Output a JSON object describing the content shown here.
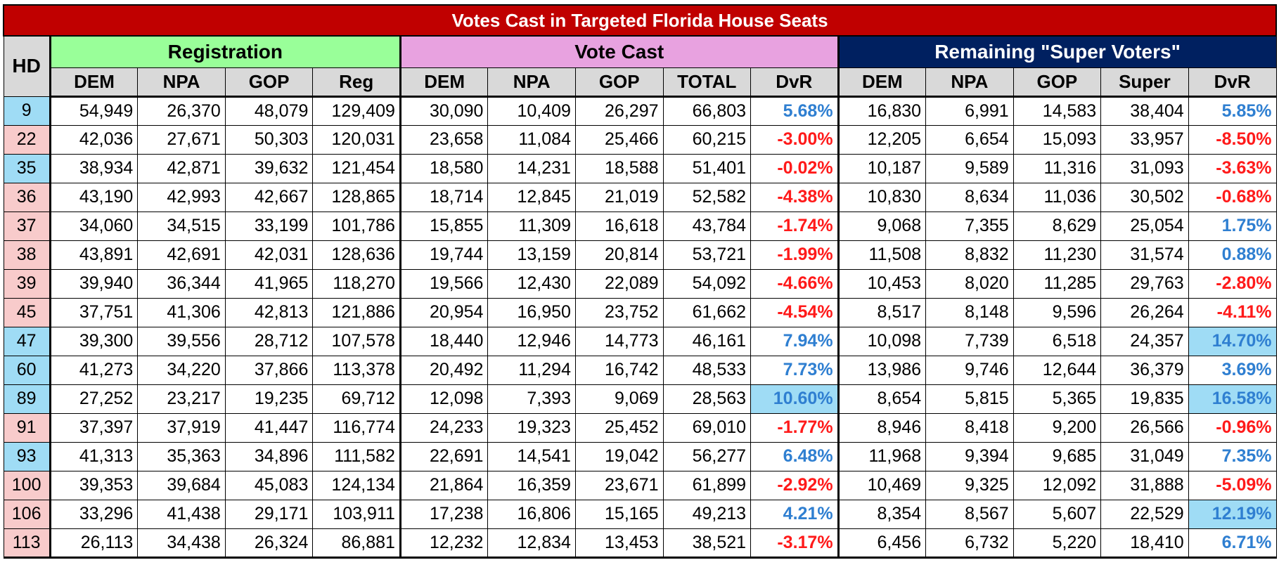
{
  "title": "Votes Cast in Targeted Florida House Seats",
  "groups": {
    "hd": "HD",
    "registration": "Registration",
    "vote_cast": "Vote Cast",
    "super_voters": "Remaining \"Super Voters\""
  },
  "subheaders": [
    "DEM",
    "NPA",
    "GOP",
    "Reg",
    "DEM",
    "NPA",
    "GOP",
    "TOTAL",
    "DvR",
    "DEM",
    "NPA",
    "GOP",
    "Super",
    "DvR"
  ],
  "colors": {
    "title_bg": "#c00000",
    "registration_bg": "#99ff99",
    "vote_cast_bg": "#e8a2e0",
    "super_bg": "#002060",
    "hd_blue": "#9fdcf5",
    "hd_red": "#f8cbcb",
    "positive_text": "#2f7fd1",
    "negative_text": "#ff1a1a"
  },
  "rows": [
    {
      "hd": "9",
      "hd_color": "blue",
      "cells": [
        "54,949",
        "26,370",
        "48,079",
        "129,409",
        "30,090",
        "10,409",
        "26,297",
        "66,803",
        "5.68%",
        "16,830",
        "6,991",
        "14,583",
        "38,404",
        "5.85%"
      ],
      "hl": []
    },
    {
      "hd": "22",
      "hd_color": "red",
      "cells": [
        "42,036",
        "27,671",
        "50,303",
        "120,031",
        "23,658",
        "11,084",
        "25,466",
        "60,215",
        "-3.00%",
        "12,205",
        "6,654",
        "15,093",
        "33,957",
        "-8.50%"
      ],
      "hl": []
    },
    {
      "hd": "35",
      "hd_color": "blue",
      "cells": [
        "38,934",
        "42,871",
        "39,632",
        "121,454",
        "18,580",
        "14,231",
        "18,588",
        "51,401",
        "-0.02%",
        "10,187",
        "9,589",
        "11,316",
        "31,093",
        "-3.63%"
      ],
      "hl": []
    },
    {
      "hd": "36",
      "hd_color": "red",
      "cells": [
        "43,190",
        "42,993",
        "42,667",
        "128,865",
        "18,714",
        "12,845",
        "21,019",
        "52,582",
        "-4.38%",
        "10,830",
        "8,634",
        "11,036",
        "30,502",
        "-0.68%"
      ],
      "hl": []
    },
    {
      "hd": "37",
      "hd_color": "red",
      "cells": [
        "34,060",
        "34,515",
        "33,199",
        "101,786",
        "15,855",
        "11,309",
        "16,618",
        "43,784",
        "-1.74%",
        "9,068",
        "7,355",
        "8,629",
        "25,054",
        "1.75%"
      ],
      "hl": []
    },
    {
      "hd": "38",
      "hd_color": "red",
      "cells": [
        "43,891",
        "42,691",
        "42,031",
        "128,636",
        "19,744",
        "13,159",
        "20,814",
        "53,721",
        "-1.99%",
        "11,508",
        "8,832",
        "11,230",
        "31,574",
        "0.88%"
      ],
      "hl": []
    },
    {
      "hd": "39",
      "hd_color": "red",
      "cells": [
        "39,940",
        "36,344",
        "41,965",
        "118,270",
        "19,566",
        "12,430",
        "22,089",
        "54,092",
        "-4.66%",
        "10,453",
        "8,020",
        "11,285",
        "29,763",
        "-2.80%"
      ],
      "hl": []
    },
    {
      "hd": "45",
      "hd_color": "red",
      "cells": [
        "37,751",
        "41,306",
        "42,813",
        "121,886",
        "20,954",
        "16,950",
        "23,752",
        "61,662",
        "-4.54%",
        "8,517",
        "8,148",
        "9,596",
        "26,264",
        "-4.11%"
      ],
      "hl": []
    },
    {
      "hd": "47",
      "hd_color": "blue",
      "cells": [
        "39,300",
        "39,556",
        "28,712",
        "107,578",
        "18,440",
        "12,946",
        "14,773",
        "46,161",
        "7.94%",
        "10,098",
        "7,739",
        "6,518",
        "24,357",
        "14.70%"
      ],
      "hl": [
        13
      ]
    },
    {
      "hd": "60",
      "hd_color": "blue",
      "cells": [
        "41,273",
        "34,220",
        "37,866",
        "113,378",
        "20,492",
        "11,294",
        "16,742",
        "48,533",
        "7.73%",
        "13,986",
        "9,746",
        "12,644",
        "36,379",
        "3.69%"
      ],
      "hl": []
    },
    {
      "hd": "89",
      "hd_color": "blue",
      "cells": [
        "27,252",
        "23,217",
        "19,235",
        "69,712",
        "12,098",
        "7,393",
        "9,069",
        "28,563",
        "10.60%",
        "8,654",
        "5,815",
        "5,365",
        "19,835",
        "16.58%"
      ],
      "hl": [
        8,
        13
      ]
    },
    {
      "hd": "91",
      "hd_color": "red",
      "cells": [
        "37,397",
        "37,919",
        "41,447",
        "116,774",
        "24,233",
        "19,323",
        "25,452",
        "69,010",
        "-1.77%",
        "8,946",
        "8,418",
        "9,200",
        "26,566",
        "-0.96%"
      ],
      "hl": []
    },
    {
      "hd": "93",
      "hd_color": "blue",
      "cells": [
        "41,313",
        "35,363",
        "34,896",
        "111,582",
        "22,691",
        "14,541",
        "19,042",
        "56,277",
        "6.48%",
        "11,968",
        "9,394",
        "9,685",
        "31,049",
        "7.35%"
      ],
      "hl": []
    },
    {
      "hd": "100",
      "hd_color": "red",
      "cells": [
        "39,353",
        "39,684",
        "45,083",
        "124,134",
        "21,864",
        "16,359",
        "23,671",
        "61,899",
        "-2.92%",
        "10,469",
        "9,325",
        "12,092",
        "31,888",
        "-5.09%"
      ],
      "hl": []
    },
    {
      "hd": "106",
      "hd_color": "red",
      "cells": [
        "33,296",
        "41,438",
        "29,171",
        "103,911",
        "17,238",
        "16,806",
        "15,165",
        "49,213",
        "4.21%",
        "8,354",
        "8,567",
        "5,607",
        "22,529",
        "12.19%"
      ],
      "hl": [
        13
      ]
    },
    {
      "hd": "113",
      "hd_color": "red",
      "cells": [
        "26,113",
        "34,438",
        "26,324",
        "86,881",
        "12,232",
        "12,834",
        "13,453",
        "38,521",
        "-3.17%",
        "6,456",
        "6,732",
        "5,220",
        "18,410",
        "6.71%"
      ],
      "hl": []
    }
  ]
}
